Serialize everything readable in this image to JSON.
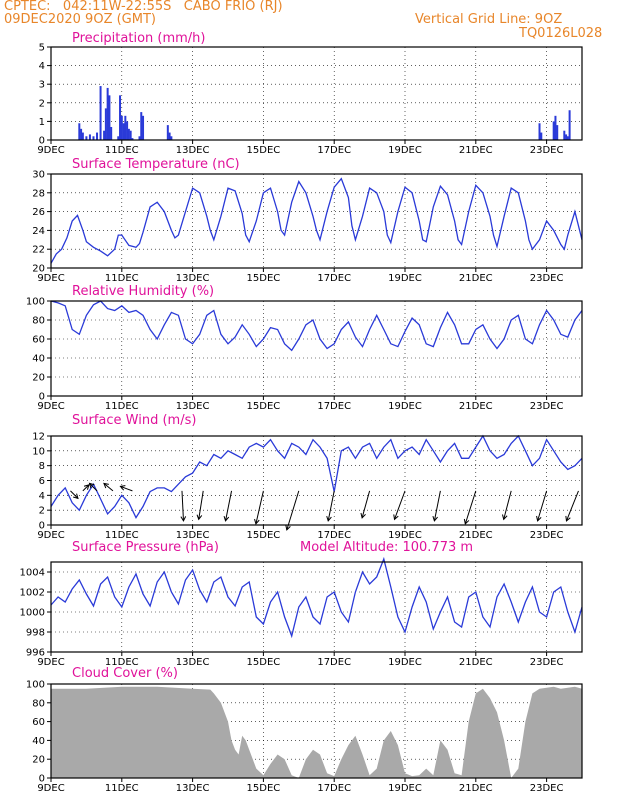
{
  "header": {
    "station": "CPTEC:   042:11W-22:55S   CABO FRIO (RJ)",
    "date": "09DEC2020 9OZ (GMT)",
    "grid_note": "Vertical Grid Line: 9OZ",
    "code": "TQ0126L028"
  },
  "x_tick_labels": [
    "9DEC",
    "11DEC",
    "13DEC",
    "15DEC",
    "17DEC",
    "19DEC",
    "21DEC",
    "23DEC"
  ],
  "x_tick_day_offsets": [
    0,
    2,
    4,
    6,
    8,
    10,
    12,
    14
  ],
  "x_range_days": [
    0,
    15.0
  ],
  "colors": {
    "line": "#2a3ad8",
    "bar": "#2a3ad8",
    "cloud": "#a9a9a9",
    "title": "#e0129a",
    "header": "#e8862a",
    "arrow": "#000000"
  },
  "chart_data": [
    {
      "type": "bar",
      "title": "Precipitation (mm/h)",
      "ylim": [
        0,
        5
      ],
      "yticks": [
        0,
        1,
        2,
        3,
        4,
        5
      ],
      "grid": true,
      "x": [
        0.8,
        0.85,
        0.9,
        1.0,
        1.1,
        1.2,
        1.3,
        1.4,
        1.5,
        1.55,
        1.6,
        1.65,
        1.7,
        1.9,
        1.95,
        2.0,
        2.05,
        2.1,
        2.15,
        2.2,
        2.25,
        2.3,
        2.5,
        2.55,
        2.6,
        3.3,
        3.35,
        3.4,
        13.8,
        13.85,
        14.2,
        14.25,
        14.3,
        14.5,
        14.55,
        14.6,
        14.65
      ],
      "values": [
        0.9,
        0.6,
        0.4,
        0.2,
        0.3,
        0.2,
        0.4,
        2.9,
        0.5,
        1.7,
        2.8,
        2.4,
        0.7,
        0.2,
        2.4,
        1.3,
        0.9,
        1.3,
        1.0,
        0.6,
        0.5,
        0.1,
        0.2,
        1.5,
        1.3,
        0.8,
        0.4,
        0.2,
        0.9,
        0.4,
        1.0,
        1.3,
        0.8,
        0.5,
        0.3,
        0.2,
        1.6
      ]
    },
    {
      "type": "line",
      "title": "Surface Temperature (nC)",
      "ylim": [
        20,
        30
      ],
      "yticks": [
        20,
        22,
        24,
        26,
        28,
        30
      ],
      "grid": true,
      "x": [
        0,
        0.15,
        0.3,
        0.45,
        0.6,
        0.75,
        0.9,
        1.0,
        1.2,
        1.4,
        1.6,
        1.8,
        1.9,
        2.0,
        2.2,
        2.4,
        2.5,
        2.6,
        2.8,
        3.0,
        3.2,
        3.4,
        3.5,
        3.6,
        3.8,
        4.0,
        4.2,
        4.4,
        4.5,
        4.6,
        4.8,
        5.0,
        5.2,
        5.4,
        5.5,
        5.6,
        5.8,
        6.0,
        6.2,
        6.4,
        6.5,
        6.6,
        6.8,
        7.0,
        7.2,
        7.4,
        7.5,
        7.6,
        7.8,
        8.0,
        8.2,
        8.4,
        8.5,
        8.6,
        8.8,
        9.0,
        9.2,
        9.4,
        9.5,
        9.6,
        9.8,
        10.0,
        10.2,
        10.4,
        10.5,
        10.6,
        10.8,
        11.0,
        11.2,
        11.4,
        11.5,
        11.6,
        11.8,
        12.0,
        12.2,
        12.4,
        12.5,
        12.6,
        12.8,
        13.0,
        13.2,
        13.4,
        13.5,
        13.6,
        13.8,
        14.0,
        14.2,
        14.4,
        14.5,
        14.6,
        14.8,
        15.0
      ],
      "values": [
        20.5,
        21.5,
        22.0,
        23.2,
        25.0,
        25.6,
        24.0,
        22.8,
        22.2,
        21.8,
        21.3,
        22.0,
        23.5,
        23.5,
        22.4,
        22.2,
        22.6,
        23.8,
        26.5,
        27.0,
        26.0,
        24.0,
        23.2,
        23.5,
        26.0,
        28.5,
        28.0,
        25.5,
        24.0,
        23.0,
        25.5,
        28.5,
        28.2,
        25.8,
        23.5,
        22.8,
        25.0,
        28.0,
        28.5,
        26.0,
        24.0,
        23.5,
        27.0,
        29.2,
        28.0,
        25.5,
        24.0,
        23.0,
        26.0,
        28.6,
        29.5,
        27.5,
        24.5,
        23.0,
        25.5,
        28.5,
        28.0,
        26.0,
        23.5,
        22.7,
        26.0,
        28.6,
        28.0,
        25.0,
        23.0,
        22.8,
        26.5,
        28.7,
        27.8,
        25.0,
        23.0,
        22.5,
        26.0,
        28.8,
        28.0,
        25.5,
        23.5,
        22.3,
        25.5,
        28.5,
        28.0,
        25.0,
        23.0,
        22.0,
        23.0,
        25.0,
        24.0,
        22.5,
        22.0,
        23.5,
        26.0,
        23.0
      ]
    },
    {
      "type": "line",
      "title": "Relative Humidity (%)",
      "ylim": [
        0,
        100
      ],
      "yticks": [
        0,
        20,
        40,
        60,
        80,
        100
      ],
      "grid": true,
      "x": [
        0,
        0.2,
        0.4,
        0.6,
        0.8,
        1.0,
        1.2,
        1.4,
        1.6,
        1.8,
        2.0,
        2.2,
        2.4,
        2.6,
        2.8,
        3.0,
        3.2,
        3.4,
        3.6,
        3.8,
        4.0,
        4.2,
        4.4,
        4.6,
        4.8,
        5.0,
        5.2,
        5.4,
        5.6,
        5.8,
        6.0,
        6.2,
        6.4,
        6.6,
        6.8,
        7.0,
        7.2,
        7.4,
        7.6,
        7.8,
        8.0,
        8.2,
        8.4,
        8.6,
        8.8,
        9.0,
        9.2,
        9.4,
        9.6,
        9.8,
        10.0,
        10.2,
        10.4,
        10.6,
        10.8,
        11.0,
        11.2,
        11.4,
        11.6,
        11.8,
        12.0,
        12.2,
        12.4,
        12.6,
        12.8,
        13.0,
        13.2,
        13.4,
        13.6,
        13.8,
        14.0,
        14.2,
        14.4,
        14.6,
        14.8,
        15.0
      ],
      "values": [
        100,
        98,
        95,
        70,
        65,
        85,
        96,
        100,
        92,
        90,
        95,
        88,
        90,
        85,
        70,
        60,
        75,
        88,
        85,
        60,
        55,
        65,
        85,
        90,
        65,
        55,
        62,
        75,
        65,
        52,
        60,
        72,
        70,
        55,
        48,
        60,
        75,
        80,
        60,
        50,
        55,
        70,
        78,
        62,
        52,
        70,
        85,
        70,
        55,
        52,
        68,
        82,
        75,
        55,
        52,
        72,
        88,
        75,
        55,
        55,
        70,
        75,
        60,
        50,
        60,
        80,
        85,
        60,
        55,
        75,
        90,
        80,
        65,
        62,
        80,
        90
      ]
    },
    {
      "type": "line",
      "title": "Surface Wind (m/s)",
      "ylim": [
        0,
        12
      ],
      "yticks": [
        0,
        2,
        4,
        6,
        8,
        10,
        12
      ],
      "grid": true,
      "x": [
        0,
        0.2,
        0.4,
        0.6,
        0.8,
        1.0,
        1.2,
        1.4,
        1.6,
        1.8,
        2.0,
        2.2,
        2.4,
        2.6,
        2.8,
        3.0,
        3.2,
        3.4,
        3.6,
        3.8,
        4.0,
        4.2,
        4.4,
        4.6,
        4.8,
        5.0,
        5.2,
        5.4,
        5.6,
        5.8,
        6.0,
        6.2,
        6.4,
        6.6,
        6.8,
        7.0,
        7.2,
        7.4,
        7.6,
        7.8,
        8.0,
        8.2,
        8.4,
        8.6,
        8.8,
        9.0,
        9.2,
        9.4,
        9.6,
        9.8,
        10.0,
        10.2,
        10.4,
        10.6,
        10.8,
        11.0,
        11.2,
        11.4,
        11.6,
        11.8,
        12.0,
        12.2,
        12.4,
        12.6,
        12.8,
        13.0,
        13.2,
        13.4,
        13.6,
        13.8,
        14.0,
        14.2,
        14.4,
        14.6,
        14.8,
        15.0
      ],
      "values": [
        2.5,
        4.0,
        5.0,
        3.0,
        2.0,
        4.0,
        5.5,
        3.5,
        1.5,
        2.5,
        4.0,
        3.0,
        1.0,
        2.5,
        4.5,
        5.0,
        5.0,
        4.5,
        5.5,
        6.5,
        7.0,
        8.5,
        8.0,
        9.5,
        9.0,
        10.0,
        9.5,
        9.0,
        10.5,
        11.0,
        10.5,
        11.5,
        10.0,
        9.0,
        11.0,
        10.5,
        9.5,
        11.5,
        10.5,
        9.0,
        4.5,
        10.0,
        10.5,
        9.0,
        10.5,
        11.0,
        9.0,
        10.5,
        11.5,
        9.0,
        10.0,
        10.5,
        9.5,
        11.5,
        10.0,
        8.5,
        10.0,
        11.0,
        9.0,
        9.0,
        10.5,
        12.0,
        10.0,
        9.0,
        9.5,
        11.0,
        12.0,
        10.0,
        8.0,
        9.0,
        11.5,
        10.0,
        8.5,
        7.5,
        8.0,
        9.0
      ],
      "wind_arrows": [
        {
          "x": 0.55,
          "u": 0.5,
          "v": -0.5
        },
        {
          "x": 0.9,
          "u": 0.4,
          "v": 0.4
        },
        {
          "x": 1.3,
          "u": -0.5,
          "v": 0.5
        },
        {
          "x": 1.75,
          "u": -0.6,
          "v": 0.5
        },
        {
          "x": 2.3,
          "u": -0.8,
          "v": 0.3
        },
        {
          "x": 3.7,
          "u": 0.1,
          "v": -2.0
        },
        {
          "x": 4.3,
          "u": -0.3,
          "v": -1.9
        },
        {
          "x": 5.1,
          "u": -0.4,
          "v": -2.0
        },
        {
          "x": 6.0,
          "u": -0.5,
          "v": -2.2
        },
        {
          "x": 7.0,
          "u": -0.8,
          "v": -2.6
        },
        {
          "x": 8.0,
          "u": -0.4,
          "v": -2.0
        },
        {
          "x": 9.0,
          "u": -0.5,
          "v": -1.8
        },
        {
          "x": 10.0,
          "u": -0.7,
          "v": -1.9
        },
        {
          "x": 11.0,
          "u": -0.4,
          "v": -2.0
        },
        {
          "x": 12.0,
          "u": -0.7,
          "v": -2.2
        },
        {
          "x": 13.0,
          "u": -0.5,
          "v": -1.9
        },
        {
          "x": 14.0,
          "u": -0.6,
          "v": -2.0
        },
        {
          "x": 14.9,
          "u": -0.8,
          "v": -2.0
        }
      ]
    },
    {
      "type": "line",
      "title": "Surface Pressure (hPa)",
      "subtitle": "Model Altitude: 100.773  m",
      "ylim": [
        996,
        1005
      ],
      "yticks": [
        996,
        998,
        1000,
        1002,
        1004
      ],
      "grid": true,
      "x": [
        0,
        0.2,
        0.4,
        0.6,
        0.8,
        1.0,
        1.2,
        1.4,
        1.6,
        1.8,
        2.0,
        2.2,
        2.4,
        2.6,
        2.8,
        3.0,
        3.2,
        3.4,
        3.6,
        3.8,
        4.0,
        4.2,
        4.4,
        4.6,
        4.8,
        5.0,
        5.2,
        5.4,
        5.6,
        5.8,
        6.0,
        6.2,
        6.4,
        6.6,
        6.8,
        7.0,
        7.2,
        7.4,
        7.6,
        7.8,
        8.0,
        8.2,
        8.4,
        8.6,
        8.8,
        9.0,
        9.2,
        9.4,
        9.6,
        9.8,
        10.0,
        10.2,
        10.4,
        10.6,
        10.8,
        11.0,
        11.2,
        11.4,
        11.6,
        11.8,
        12.0,
        12.2,
        12.4,
        12.6,
        12.8,
        13.0,
        13.2,
        13.4,
        13.6,
        13.8,
        14.0,
        14.2,
        14.4,
        14.6,
        14.8,
        15.0
      ],
      "values": [
        1000.7,
        1001.5,
        1001.0,
        1002.3,
        1003.2,
        1001.8,
        1000.6,
        1002.8,
        1003.5,
        1001.5,
        1000.5,
        1002.5,
        1003.8,
        1001.8,
        1000.6,
        1003.0,
        1004.0,
        1002.0,
        1000.8,
        1003.2,
        1004.2,
        1002.2,
        1001.0,
        1003.0,
        1003.5,
        1001.5,
        1000.6,
        1002.5,
        1003.0,
        999.5,
        998.8,
        1001.0,
        1002.0,
        999.5,
        997.6,
        1000.5,
        1001.5,
        999.5,
        998.8,
        1001.5,
        1002.0,
        1000.0,
        999.0,
        1002.0,
        1004.0,
        1002.8,
        1003.5,
        1005.3,
        1002.5,
        999.5,
        998.0,
        1000.5,
        1002.5,
        1001.0,
        998.3,
        1000.0,
        1001.5,
        999.0,
        998.5,
        1001.5,
        1002.0,
        999.5,
        998.5,
        1001.5,
        1002.8,
        1001.0,
        999.0,
        1001.0,
        1002.5,
        1000.0,
        999.5,
        1002.0,
        1002.5,
        1000.0,
        998.0,
        1000.5
      ]
    },
    {
      "type": "area",
      "title": "Cloud Cover (%)",
      "ylim": [
        0,
        100
      ],
      "yticks": [
        0,
        20,
        40,
        60,
        80,
        100
      ],
      "grid": true,
      "x": [
        0,
        0.5,
        1.0,
        1.5,
        2.0,
        2.5,
        3.0,
        3.5,
        4.0,
        4.5,
        4.6,
        4.8,
        5.0,
        5.1,
        5.2,
        5.3,
        5.4,
        5.5,
        5.6,
        5.8,
        6.0,
        6.2,
        6.4,
        6.6,
        6.8,
        7.0,
        7.2,
        7.4,
        7.6,
        7.8,
        8.0,
        8.2,
        8.4,
        8.6,
        8.8,
        9.0,
        9.2,
        9.4,
        9.6,
        9.8,
        10.0,
        10.2,
        10.4,
        10.6,
        10.8,
        11.0,
        11.2,
        11.4,
        11.6,
        11.8,
        12.0,
        12.2,
        12.4,
        12.6,
        12.8,
        13.0,
        13.2,
        13.4,
        13.6,
        13.8,
        14.0,
        14.2,
        14.4,
        14.6,
        14.8,
        15.0
      ],
      "values": [
        95,
        95,
        95,
        96,
        97,
        97,
        97,
        96,
        95,
        94,
        90,
        80,
        60,
        40,
        30,
        25,
        45,
        40,
        30,
        10,
        3,
        15,
        25,
        20,
        3,
        0,
        20,
        30,
        25,
        5,
        2,
        20,
        35,
        45,
        25,
        3,
        10,
        40,
        50,
        35,
        5,
        2,
        3,
        10,
        3,
        40,
        30,
        5,
        3,
        60,
        90,
        95,
        85,
        70,
        40,
        0,
        10,
        60,
        90,
        95,
        96,
        97,
        95,
        96,
        97,
        95
      ]
    }
  ]
}
